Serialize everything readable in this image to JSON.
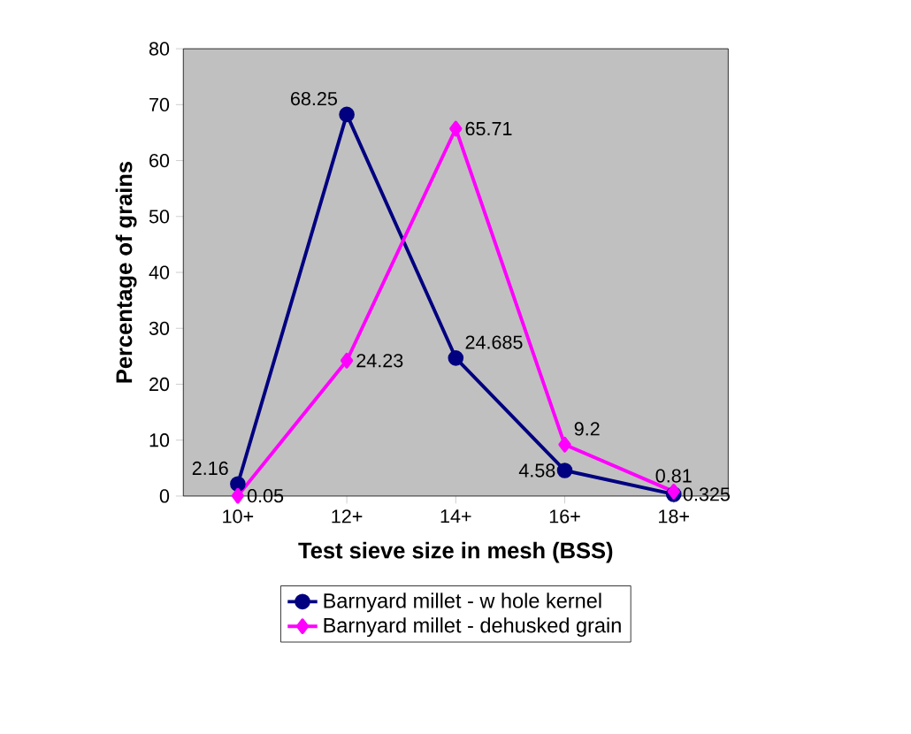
{
  "chart_data": {
    "type": "line",
    "xlabel": "Test sieve size in mesh (BSS)",
    "ylabel": "Percentage of grains",
    "categories": [
      "10+",
      "12+",
      "14+",
      "16+",
      "18+"
    ],
    "series": [
      {
        "name": "Barnyard millet - w hole kernel",
        "color": "#000080",
        "marker": "circle",
        "values": [
          2.16,
          68.25,
          24.685,
          4.58,
          0.325
        ]
      },
      {
        "name": "Barnyard millet - dehusked grain",
        "color": "#ff00ff",
        "marker": "diamond",
        "values": [
          0.05,
          24.23,
          65.71,
          9.2,
          0.81
        ]
      }
    ],
    "ylim": [
      0,
      80
    ],
    "yticks": [
      0,
      10,
      20,
      30,
      40,
      50,
      60,
      70,
      80
    ],
    "data_labels": true,
    "legend": "bottom",
    "grid": false
  }
}
